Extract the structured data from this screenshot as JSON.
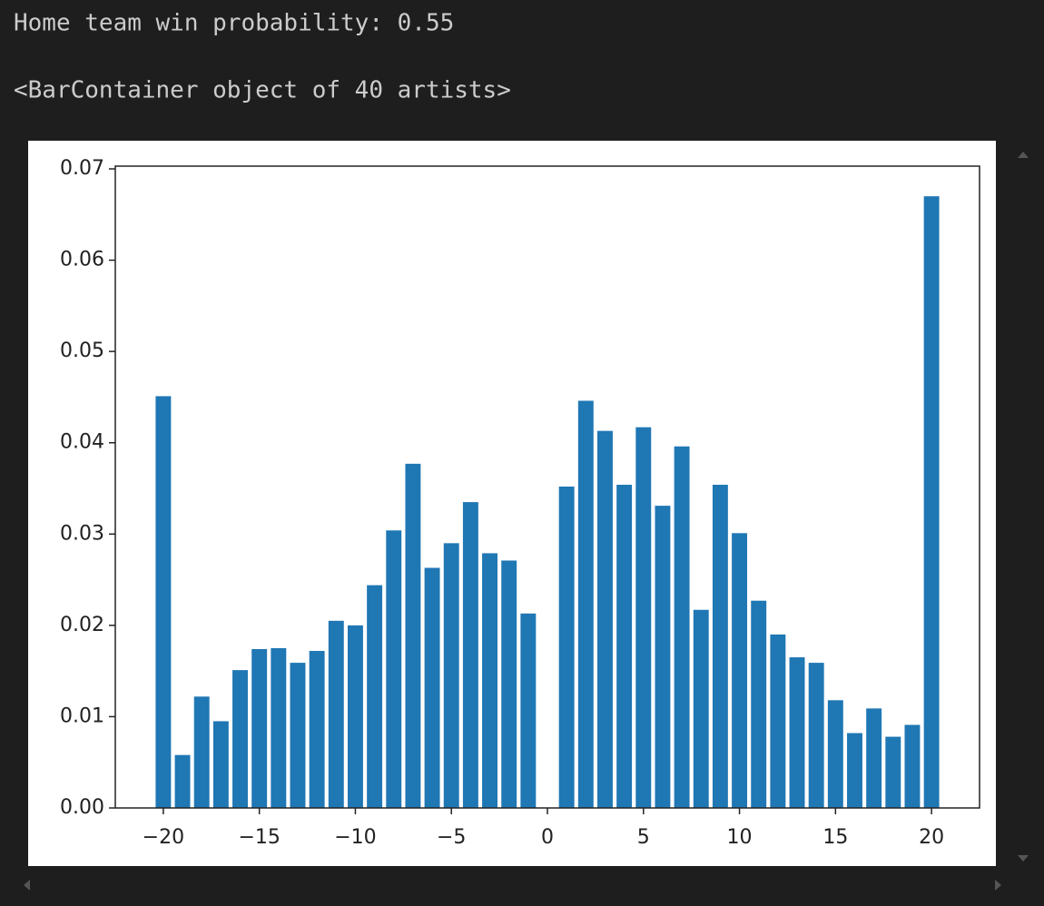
{
  "outputs": [
    "Home team win probability: 0.55",
    "<BarContainer object of 40 artists>"
  ],
  "chart_data": {
    "type": "bar",
    "color": "#1f77b4",
    "bar_width": 0.8,
    "x": [
      -20,
      -19,
      -18,
      -17,
      -16,
      -15,
      -14,
      -13,
      -12,
      -11,
      -10,
      -9,
      -8,
      -7,
      -6,
      -5,
      -4,
      -3,
      -2,
      -1,
      1,
      2,
      3,
      4,
      5,
      6,
      7,
      8,
      9,
      10,
      11,
      12,
      13,
      14,
      15,
      16,
      17,
      18,
      19,
      20
    ],
    "values": [
      0.0451,
      0.0058,
      0.0122,
      0.0095,
      0.0151,
      0.0174,
      0.0175,
      0.0159,
      0.0172,
      0.0205,
      0.02,
      0.0244,
      0.0304,
      0.0377,
      0.0263,
      0.029,
      0.0335,
      0.0279,
      0.0271,
      0.0213,
      0.0352,
      0.0446,
      0.0413,
      0.0354,
      0.0417,
      0.0331,
      0.0396,
      0.0217,
      0.0354,
      0.0301,
      0.0227,
      0.019,
      0.0165,
      0.0159,
      0.0118,
      0.0082,
      0.0109,
      0.0078,
      0.0091,
      0.067
    ],
    "xlim": [
      -22.5,
      22.5
    ],
    "xticks": [
      {
        "value": -20,
        "label": "−20"
      },
      {
        "value": -15,
        "label": "−15"
      },
      {
        "value": -10,
        "label": "−10"
      },
      {
        "value": -5,
        "label": "−5"
      },
      0,
      5,
      10,
      15,
      20
    ],
    "ylim": [
      0,
      0.0703
    ],
    "yticks": [
      {
        "value": 0,
        "label": "0.00"
      },
      0.01,
      0.02,
      0.03,
      0.04,
      0.05,
      0.06,
      0.07
    ]
  }
}
